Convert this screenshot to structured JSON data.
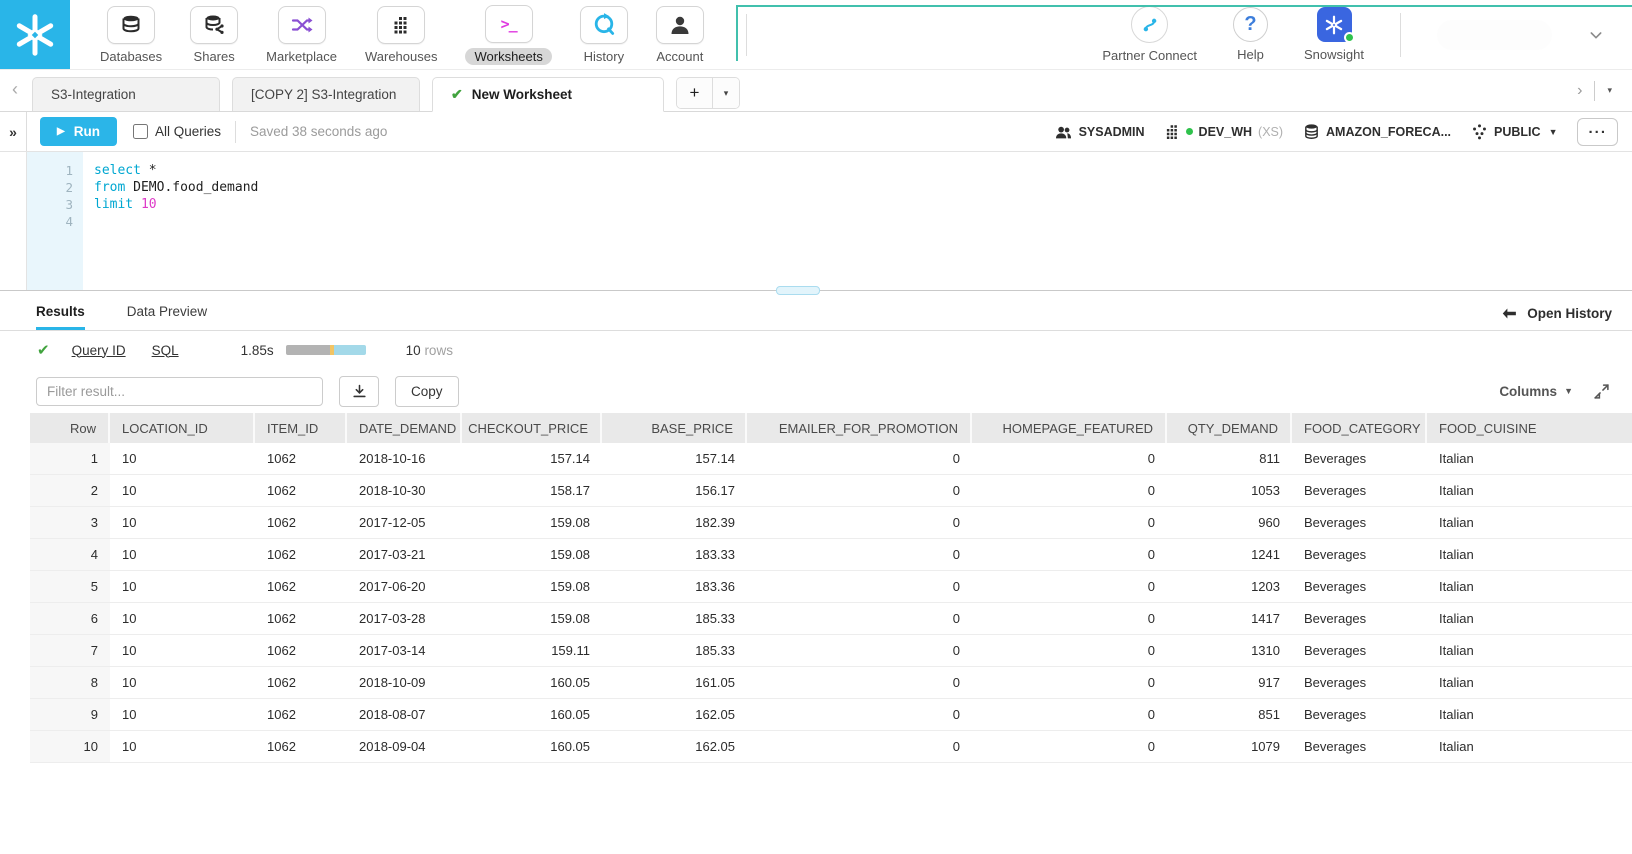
{
  "colors": {
    "accent": "#29b5e8",
    "run": "#2bb5e8",
    "teal": "#41c0ad",
    "kw": "#00a7d1",
    "num": "#de3ac8",
    "check": "#41a33e",
    "purple": "#8a4fd3",
    "blue": "#3d7edb",
    "snowsight": "#3a66e0",
    "green_dot": "#2fc24c"
  },
  "topnav": {
    "items": [
      {
        "label": "Databases"
      },
      {
        "label": "Shares"
      },
      {
        "label": "Marketplace"
      },
      {
        "label": "Warehouses"
      },
      {
        "label": "Worksheets",
        "selected": true
      },
      {
        "label": "History"
      },
      {
        "label": "Account"
      }
    ],
    "partner_connect": "Partner Connect",
    "help": "Help",
    "snowsight": "Snowsight"
  },
  "tabs": {
    "items": [
      {
        "label": "S3-Integration",
        "active": false
      },
      {
        "label": "[COPY 2] S3-Integration",
        "active": false
      },
      {
        "label": "New Worksheet",
        "active": true
      }
    ]
  },
  "toolbar": {
    "run_label": "Run",
    "all_queries_label": "All Queries",
    "saved_text": "Saved 38 seconds ago",
    "context": {
      "role": "SYSADMIN",
      "warehouse": "DEV_WH",
      "warehouse_size": "(XS)",
      "database": "AMAZON_FORECA...",
      "schema": "PUBLIC"
    }
  },
  "editor": {
    "line_numbers": [
      "1",
      "2",
      "3",
      "4"
    ],
    "lines": [
      [
        {
          "text": "select",
          "type": "kw"
        },
        {
          "text": " *",
          "type": "plain"
        }
      ],
      [
        {
          "text": "from",
          "type": "kw"
        },
        {
          "text": " DEMO.food_demand",
          "type": "plain"
        }
      ],
      [
        {
          "text": "limit",
          "type": "kw"
        },
        {
          "text": " 10",
          "type": "num"
        }
      ],
      []
    ]
  },
  "results": {
    "tab_results": "Results",
    "tab_data_preview": "Data Preview",
    "open_history": "Open History",
    "query_id_label": "Query ID",
    "sql_label": "SQL",
    "duration": "1.85s",
    "duration_bar": [
      {
        "color": "#b3b3b3",
        "pct": 55
      },
      {
        "color": "#f2c464",
        "pct": 6
      },
      {
        "color": "#a3d9e9",
        "pct": 39
      }
    ],
    "rows_count": "10",
    "rows_label": "rows",
    "filter_placeholder": "Filter result...",
    "copy_label": "Copy",
    "columns_label": "Columns",
    "table": {
      "columns": [
        {
          "label": "Row",
          "align": "right"
        },
        {
          "label": "LOCATION_ID",
          "align": "left"
        },
        {
          "label": "ITEM_ID",
          "align": "left"
        },
        {
          "label": "DATE_DEMAND",
          "align": "left"
        },
        {
          "label": "CHECKOUT_PRICE",
          "align": "right"
        },
        {
          "label": "BASE_PRICE",
          "align": "right"
        },
        {
          "label": "EMAILER_FOR_PROMOTION",
          "align": "right"
        },
        {
          "label": "HOMEPAGE_FEATURED",
          "align": "right"
        },
        {
          "label": "QTY_DEMAND",
          "align": "right"
        },
        {
          "label": "FOOD_CATEGORY",
          "align": "left"
        },
        {
          "label": "FOOD_CUISINE",
          "align": "left"
        }
      ],
      "rows": [
        [
          "1",
          "10",
          "1062",
          "2018-10-16",
          "157.14",
          "157.14",
          "0",
          "0",
          "811",
          "Beverages",
          "Italian"
        ],
        [
          "2",
          "10",
          "1062",
          "2018-10-30",
          "158.17",
          "156.17",
          "0",
          "0",
          "1053",
          "Beverages",
          "Italian"
        ],
        [
          "3",
          "10",
          "1062",
          "2017-12-05",
          "159.08",
          "182.39",
          "0",
          "0",
          "960",
          "Beverages",
          "Italian"
        ],
        [
          "4",
          "10",
          "1062",
          "2017-03-21",
          "159.08",
          "183.33",
          "0",
          "0",
          "1241",
          "Beverages",
          "Italian"
        ],
        [
          "5",
          "10",
          "1062",
          "2017-06-20",
          "159.08",
          "183.36",
          "0",
          "0",
          "1203",
          "Beverages",
          "Italian"
        ],
        [
          "6",
          "10",
          "1062",
          "2017-03-28",
          "159.08",
          "185.33",
          "0",
          "0",
          "1417",
          "Beverages",
          "Italian"
        ],
        [
          "7",
          "10",
          "1062",
          "2017-03-14",
          "159.11",
          "185.33",
          "0",
          "0",
          "1310",
          "Beverages",
          "Italian"
        ],
        [
          "8",
          "10",
          "1062",
          "2018-10-09",
          "160.05",
          "161.05",
          "0",
          "0",
          "917",
          "Beverages",
          "Italian"
        ],
        [
          "9",
          "10",
          "1062",
          "2018-08-07",
          "160.05",
          "162.05",
          "0",
          "0",
          "851",
          "Beverages",
          "Italian"
        ],
        [
          "10",
          "10",
          "1062",
          "2018-09-04",
          "160.05",
          "162.05",
          "0",
          "0",
          "1079",
          "Beverages",
          "Italian"
        ]
      ]
    }
  }
}
